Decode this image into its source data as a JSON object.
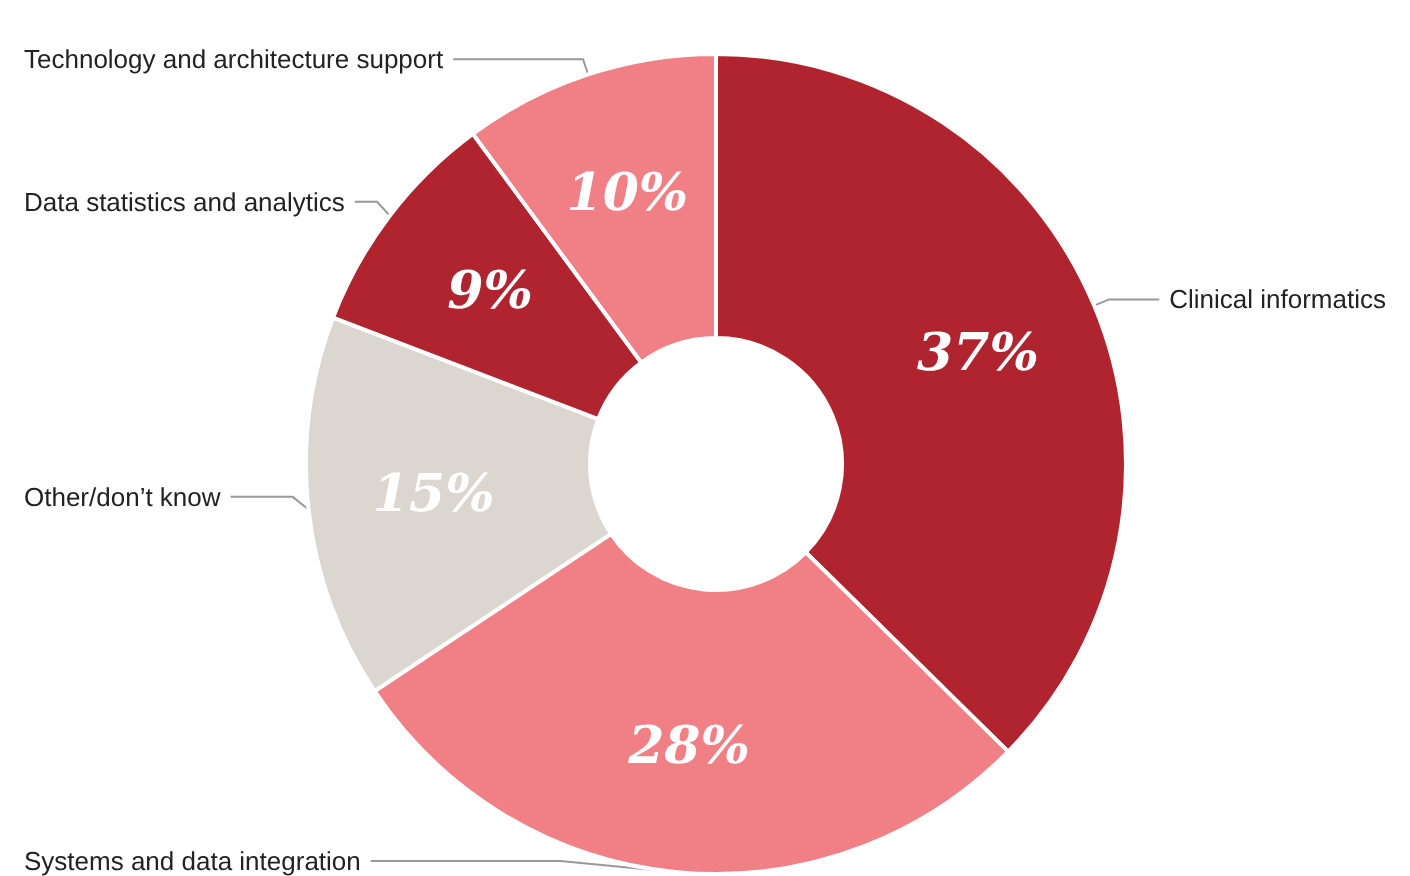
{
  "chart_data": {
    "type": "donut",
    "categories": [
      "Clinical informatics",
      "Systems and data integration",
      "Other/don’t know",
      "Data statistics and analytics",
      "Technology and architecture support"
    ],
    "values": [
      37,
      28,
      15,
      9,
      10
    ],
    "value_labels": [
      "37%",
      "28%",
      "15%",
      "9%",
      "10%"
    ],
    "colors": [
      "#b0242f",
      "#f07f86",
      "#dcd6d0",
      "#b0242f",
      "#f07f86"
    ],
    "legend": false
  }
}
